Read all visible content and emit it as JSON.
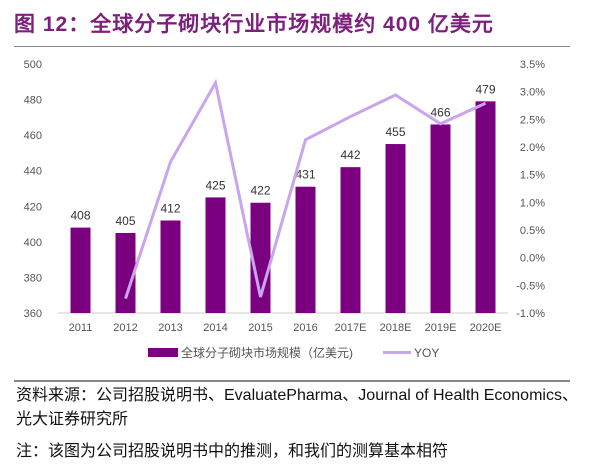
{
  "figure_title": "图 12：全球分子砌块行业市场规模约 400 亿美元",
  "chart_data": {
    "type": "bar",
    "title": "图 12：全球分子砌块行业市场规模约 400 亿美元",
    "categories": [
      "2011",
      "2012",
      "2013",
      "2014",
      "2015",
      "2016",
      "2017E",
      "2018E",
      "2019E",
      "2020E"
    ],
    "series": [
      {
        "name": "全球分子砌块市场规模（亿美元)",
        "type": "bar",
        "axis": "left",
        "color": "#7b0080",
        "values": [
          408,
          405,
          412,
          425,
          422,
          431,
          442,
          455,
          466,
          479
        ]
      },
      {
        "name": "YOY",
        "type": "line",
        "axis": "right",
        "color": "#c9a5ee",
        "values": [
          null,
          -0.74,
          1.73,
          3.16,
          -0.71,
          2.13,
          2.55,
          2.94,
          2.42,
          2.79
        ]
      }
    ],
    "data_labels": [
      "408",
      "405",
      "412",
      "425",
      "422",
      "431",
      "442",
      "455",
      "466",
      "479"
    ],
    "ylim": [
      360,
      500
    ],
    "y_ticks": [
      "360",
      "380",
      "400",
      "420",
      "440",
      "460",
      "480",
      "500"
    ],
    "y2lim": [
      -1.0,
      3.5
    ],
    "y2_ticks": [
      "-1.0%",
      "-0.5%",
      "0.0%",
      "0.5%",
      "1.0%",
      "1.5%",
      "2.0%",
      "2.5%",
      "3.0%",
      "3.5%"
    ],
    "xlabel": "",
    "ylabel": "",
    "legend_position": "bottom",
    "grid": false
  },
  "legend": {
    "bar_label": "全球分子砌块市场规模（亿美元)",
    "line_label": "YOY"
  },
  "source_text": "资料来源：公司招股说明书、EvaluatePharma、Journal of Health Economics、光大证券研究所",
  "note_text": "注：该图为公司招股说明书中的推测，和我们的测算基本相符"
}
